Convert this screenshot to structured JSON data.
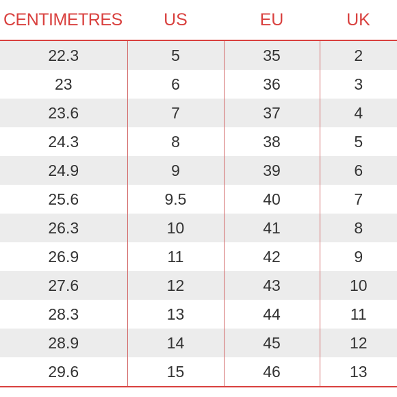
{
  "header": {
    "col1": "CENTIMETRES",
    "col2": "US",
    "col3": "EU",
    "col4": "UK"
  },
  "rows": [
    [
      "22.3",
      "5",
      "35",
      "2"
    ],
    [
      "23",
      "6",
      "36",
      "3"
    ],
    [
      "23.6",
      "7",
      "37",
      "4"
    ],
    [
      "24.3",
      "8",
      "38",
      "5"
    ],
    [
      "24.9",
      "9",
      "39",
      "6"
    ],
    [
      "25.6",
      "9.5",
      "40",
      "7"
    ],
    [
      "26.3",
      "10",
      "41",
      "8"
    ],
    [
      "26.9",
      "11",
      "42",
      "9"
    ],
    [
      "27.6",
      "12",
      "43",
      "10"
    ],
    [
      "28.3",
      "13",
      "44",
      "11"
    ],
    [
      "28.9",
      "14",
      "45",
      "12"
    ],
    [
      "29.6",
      "15",
      "46",
      "13"
    ]
  ],
  "colors": {
    "accent": "#d9413f",
    "stripe": "#ececec",
    "text": "#333333"
  }
}
